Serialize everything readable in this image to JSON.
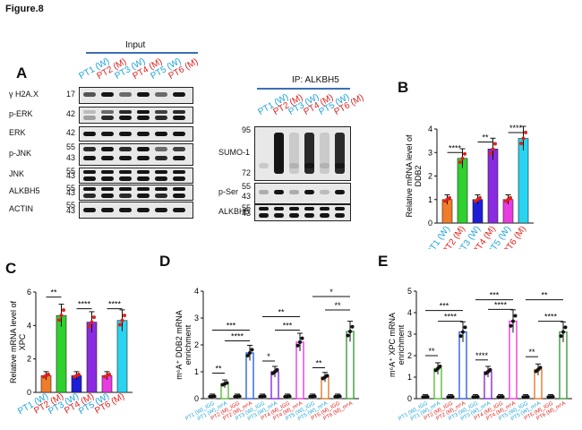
{
  "figure_title": "Figure.8",
  "panel_labels": {
    "a": "A",
    "b": "B",
    "c": "C",
    "d": "D",
    "e": "E"
  },
  "colors": {
    "wild_type": "#1aa3d9",
    "mutant": "#e0201b"
  },
  "blot_input": {
    "header": "Input",
    "samples": [
      "PT1 (W)",
      "PT2 (M)",
      "PT3 (W)",
      "PT4 (M)",
      "PT5 (W)",
      "PT6 (M)"
    ],
    "rows": [
      {
        "label": "γ H2A.X",
        "mw": [
          "17"
        ]
      },
      {
        "label": "p-ERK",
        "mw": [
          "42"
        ]
      },
      {
        "label": "ERK",
        "mw": [
          "42"
        ]
      },
      {
        "label": "p-JNK",
        "mw": [
          "55",
          "43"
        ]
      },
      {
        "label": "JNK",
        "mw": [
          "55",
          "43"
        ]
      },
      {
        "label": "ALKBH5",
        "mw": [
          "55",
          "43"
        ]
      },
      {
        "label": "ACTIN",
        "mw": [
          "55",
          "43"
        ]
      }
    ]
  },
  "blot_ip": {
    "header": "IP: ALKBH5",
    "samples": [
      "PT1 (W)",
      "PT2 (M)",
      "PT3 (W)",
      "PT4 (M)",
      "PT5 (W)",
      "PT6 (M)"
    ],
    "rows": [
      {
        "label": "SUMO-1",
        "mw": [
          "95",
          "72"
        ]
      },
      {
        "label": "p-Ser",
        "mw": [
          "55",
          "43"
        ]
      },
      {
        "label": "ALKBH5",
        "mw": [
          "55",
          "43"
        ]
      }
    ]
  },
  "chart_data": [
    {
      "id": "B",
      "type": "bar",
      "ylabel": "Relative mRNA level of DDB2",
      "ylim": [
        0,
        4
      ],
      "yticks": [
        0,
        1,
        2,
        3,
        4
      ],
      "categories": [
        "PT1 (W)",
        "PT2 (M)",
        "PT3 (W)",
        "PT4 (M)",
        "PT5 (W)",
        "PT6 (M)"
      ],
      "category_types": [
        "W",
        "M",
        "W",
        "M",
        "W",
        "M"
      ],
      "values": [
        1.0,
        2.75,
        1.0,
        3.15,
        1.0,
        3.6
      ],
      "bar_colors": [
        "#f07c2a",
        "#2fd12f",
        "#1d1dd8",
        "#8a2be2",
        "#e83be0",
        "#29d4f0"
      ],
      "significance": [
        {
          "from": 0,
          "to": 1,
          "label": "****",
          "level": 3.0
        },
        {
          "from": 2,
          "to": 3,
          "label": "**",
          "level": 3.45
        },
        {
          "from": 4,
          "to": 5,
          "label": "****",
          "level": 3.85
        }
      ]
    },
    {
      "id": "C",
      "type": "bar",
      "ylabel": "Relative mRNA level of XPC",
      "ylim": [
        0,
        6
      ],
      "yticks": [
        0,
        2,
        4,
        6
      ],
      "categories": [
        "PT1 (W)",
        "PT2 (M)",
        "PT3 (W)",
        "PT4 (M)",
        "PT5 (W)",
        "PT6 (M)"
      ],
      "category_types": [
        "W",
        "M",
        "W",
        "M",
        "W",
        "M"
      ],
      "values": [
        1.0,
        4.6,
        1.0,
        4.2,
        1.0,
        4.3
      ],
      "bar_colors": [
        "#f07c2a",
        "#2fd12f",
        "#1d1dd8",
        "#8a2be2",
        "#e83be0",
        "#29d4f0"
      ],
      "significance": [
        {
          "from": 0,
          "to": 1,
          "label": "**",
          "level": 5.7
        },
        {
          "from": 2,
          "to": 3,
          "label": "****",
          "level": 5.0
        },
        {
          "from": 4,
          "to": 5,
          "label": "****",
          "level": 5.0
        }
      ]
    },
    {
      "id": "D",
      "type": "bar",
      "ylabel": "m⁶A⁺ DDB2 mRNA enrichment",
      "ylim": [
        0,
        4
      ],
      "yticks": [
        0,
        1,
        2,
        3,
        4
      ],
      "categories": [
        "PT1 (W)_IGG",
        "PT1 (W)_m⁶A",
        "PT2 (M)_IGG",
        "PT2 (M)_m⁶A",
        "PT3 (W)_IGG",
        "PT3 (W)_m⁶A",
        "PT4 (M)_IGG",
        "PT4 (M)_m⁶A",
        "PT5 (W)_IGG",
        "PT5 (W)_m⁶A",
        "PT6 (M)_IGG",
        "PT6 (M)_m⁶A"
      ],
      "category_types": [
        "W",
        "W",
        "M",
        "M",
        "W",
        "W",
        "M",
        "M",
        "W",
        "W",
        "M",
        "M"
      ],
      "values": [
        0.08,
        0.55,
        0.08,
        1.7,
        0.08,
        1.0,
        0.08,
        2.1,
        0.08,
        0.8,
        0.08,
        2.5
      ],
      "bar_colors": [
        "#8a8a8a",
        "#5bbf3a",
        "#8a8a8a",
        "#2f62e0",
        "#8a8a8a",
        "#8a2be2",
        "#8a8a8a",
        "#e83be0",
        "#8a8a8a",
        "#e07b2a",
        "#8a8a8a",
        "#3d9b3d"
      ],
      "significance": [
        {
          "from": 0,
          "to": 1,
          "label": "**",
          "level": 0.95
        },
        {
          "from": 1,
          "to": 3,
          "label": "****",
          "level": 2.15
        },
        {
          "from": 0,
          "to": 3,
          "label": "***",
          "level": 2.55
        },
        {
          "from": 4,
          "to": 5,
          "label": "*",
          "level": 1.4
        },
        {
          "from": 5,
          "to": 7,
          "label": "***",
          "level": 2.55
        },
        {
          "from": 4,
          "to": 7,
          "label": "**",
          "level": 3.05
        },
        {
          "from": 8,
          "to": 9,
          "label": "**",
          "level": 1.15
        },
        {
          "from": 9,
          "to": 11,
          "label": "**",
          "level": 3.3
        },
        {
          "from": 8,
          "to": 11,
          "label": "*",
          "level": 3.8
        }
      ]
    },
    {
      "id": "E",
      "type": "bar",
      "ylabel": "m⁶A⁺ XPC mRNA enrichment",
      "ylim": [
        0,
        5
      ],
      "yticks": [
        0,
        1,
        2,
        3,
        4,
        5
      ],
      "categories": [
        "PT1 (W)_IGG",
        "PT1 (W)_m⁶A",
        "PT2 (M)_IGG",
        "PT2 (M)_m⁶A",
        "PT3 (W)_IGG",
        "PT3 (W)_m⁶A",
        "PT4 (M)_IGG",
        "PT4 (M)_m⁶A",
        "PT5 (W)_IGG",
        "PT5 (W)_m⁶A",
        "PT6 (M)_IGG",
        "PT6 (M)_m⁶A"
      ],
      "category_types": [
        "W",
        "W",
        "M",
        "M",
        "W",
        "W",
        "M",
        "M",
        "W",
        "W",
        "M",
        "M"
      ],
      "values": [
        0.08,
        1.4,
        0.08,
        3.1,
        0.08,
        1.25,
        0.08,
        3.6,
        0.08,
        1.35,
        0.08,
        3.1
      ],
      "bar_colors": [
        "#8a8a8a",
        "#5bbf3a",
        "#8a8a8a",
        "#2f62e0",
        "#8a8a8a",
        "#8a2be2",
        "#8a8a8a",
        "#e83be0",
        "#8a8a8a",
        "#e07b2a",
        "#8a8a8a",
        "#3d9b3d"
      ],
      "significance": [
        {
          "from": 0,
          "to": 1,
          "label": "**",
          "level": 2.0
        },
        {
          "from": 1,
          "to": 3,
          "label": "****",
          "level": 3.6
        },
        {
          "from": 0,
          "to": 3,
          "label": "***",
          "level": 4.1
        },
        {
          "from": 4,
          "to": 5,
          "label": "****",
          "level": 1.8
        },
        {
          "from": 5,
          "to": 7,
          "label": "****",
          "level": 4.15
        },
        {
          "from": 4,
          "to": 7,
          "label": "***",
          "level": 4.6
        },
        {
          "from": 8,
          "to": 9,
          "label": "**",
          "level": 1.95
        },
        {
          "from": 9,
          "to": 11,
          "label": "****",
          "level": 3.6
        },
        {
          "from": 8,
          "to": 11,
          "label": "**",
          "level": 4.6
        }
      ]
    }
  ]
}
